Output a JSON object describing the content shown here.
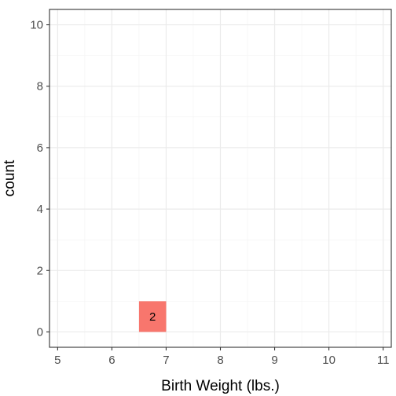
{
  "chart_data": {
    "type": "bar",
    "title": "",
    "xlabel": "Birth Weight (lbs.)",
    "ylabel": "count",
    "xlim": [
      4.85,
      11.15
    ],
    "ylim": [
      -0.5,
      10.5
    ],
    "xticks": [
      5,
      6,
      7,
      8,
      9,
      10,
      11
    ],
    "yticks": [
      0,
      2,
      4,
      6,
      8,
      10
    ],
    "grid": true,
    "legend": "none",
    "bar_color": "#F8766D",
    "bars": [
      {
        "x_start": 6.5,
        "x_end": 7.0,
        "y_start": 0,
        "y_end": 1,
        "label": "2"
      }
    ]
  }
}
